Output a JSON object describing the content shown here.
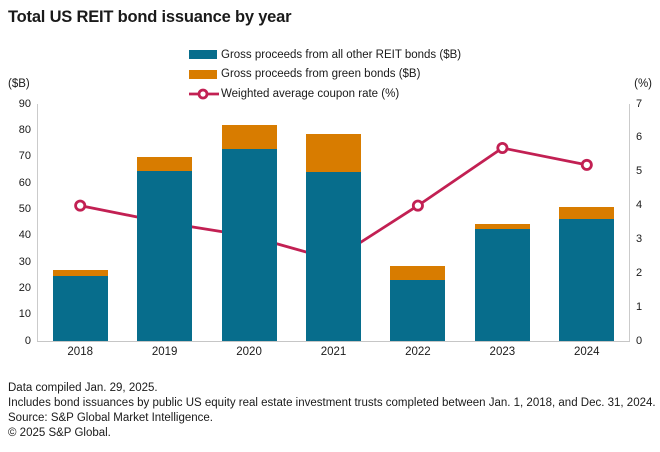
{
  "chart_data": {
    "type": "bar+line",
    "stacked": true,
    "grid": false,
    "legend_position": "top",
    "title": "Total US REIT bond issuance by year",
    "categories": [
      "2018",
      "2019",
      "2020",
      "2021",
      "2022",
      "2023",
      "2024"
    ],
    "series": [
      {
        "name": "Gross proceeds from all other REIT bonds ($B)",
        "type": "bar",
        "axis": "left",
        "color": "#076D8C",
        "values": [
          24.5,
          64.5,
          73,
          64,
          23,
          42.5,
          46.5
        ]
      },
      {
        "name": "Gross proceeds from green bonds ($B)",
        "type": "bar",
        "axis": "left",
        "color": "#D87C00",
        "values": [
          2.5,
          5.5,
          9,
          14.5,
          5.5,
          2,
          4.5
        ]
      },
      {
        "name": "Weighted average coupon rate (%)",
        "type": "line",
        "axis": "right",
        "color": "#C22053",
        "values": [
          4.0,
          3.5,
          3.1,
          2.4,
          4.0,
          5.7,
          5.2
        ]
      }
    ],
    "left_axis": {
      "label": "($B)",
      "range": [
        0,
        90
      ],
      "ticks": [
        0,
        10,
        20,
        30,
        40,
        50,
        60,
        70,
        80,
        90
      ]
    },
    "right_axis": {
      "label": "(%)",
      "range": [
        0,
        7
      ],
      "ticks": [
        0,
        1,
        2,
        3,
        4,
        5,
        6,
        7
      ]
    }
  },
  "footer": {
    "lines": [
      "Data compiled Jan. 29, 2025.",
      "Includes bond issuances by public US equity real estate investment trusts completed between Jan. 1, 2018, and Dec. 31, 2024.",
      "Source: S&P Global Market Intelligence.",
      "© 2025 S&P Global."
    ]
  },
  "colors": {
    "other_bonds": "#076D8C",
    "green_bonds": "#D87C00",
    "coupon_line": "#C22053",
    "axis_line": "#CBCBCB",
    "text": "#1A1A1A",
    "background": "#FFFFFF"
  }
}
